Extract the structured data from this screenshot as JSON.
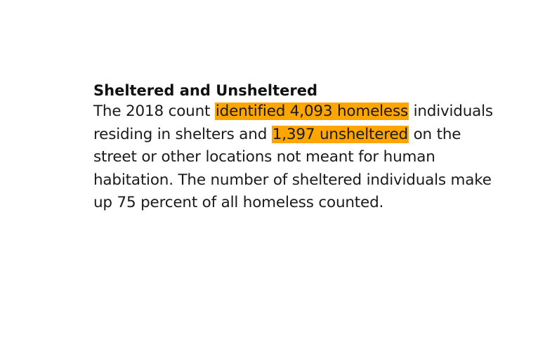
{
  "heading": "Sheltered and Unsheltered",
  "paragraph": {
    "part1": "The 2018 count ",
    "highlight1": "identified 4,093 homeless",
    "part2": " individuals residing in shelters and ",
    "highlight2": "1,397 unsheltered",
    "part3": " on the street or other locations not meant for human habitation. The number of sheltered individuals make up 75 percent of all homeless counted."
  },
  "colors": {
    "highlight": "#ffa500",
    "text": "#1a1a1a",
    "background": "#ffffff"
  }
}
